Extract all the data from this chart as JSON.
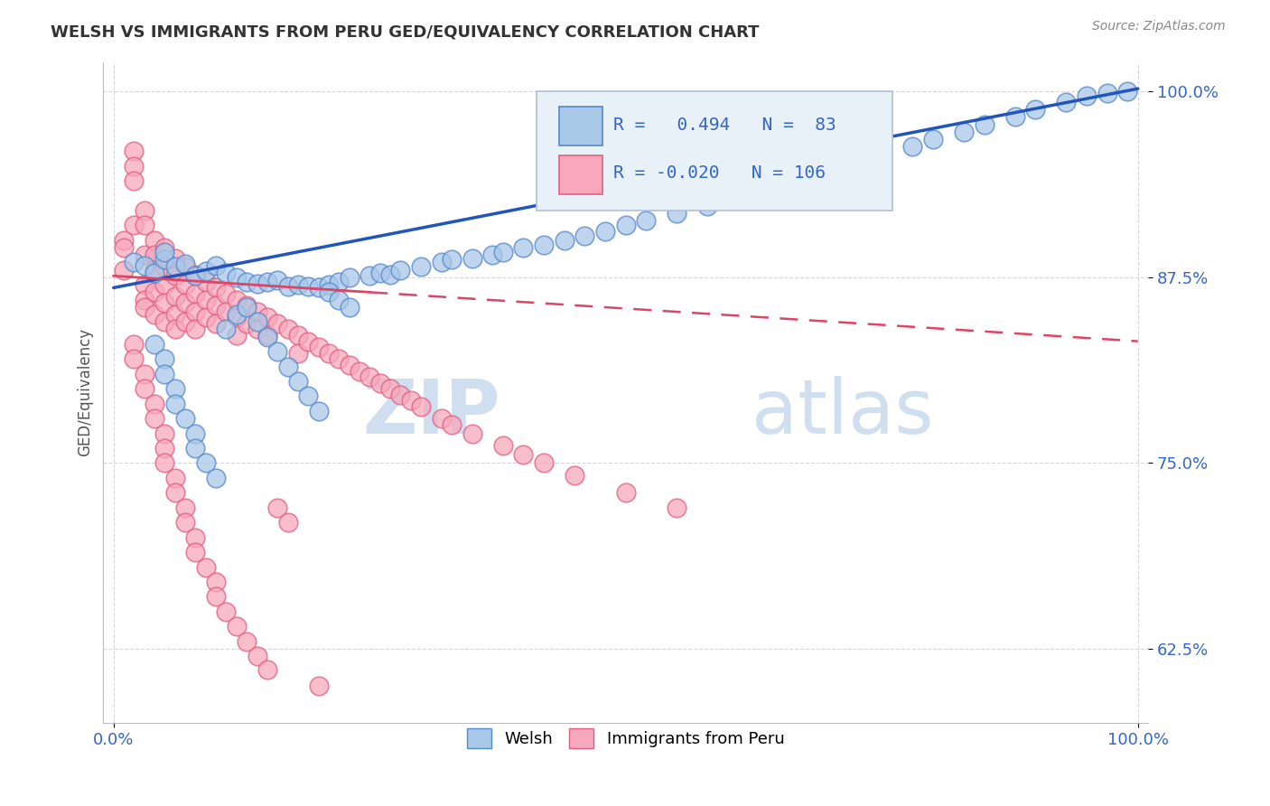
{
  "title": "WELSH VS IMMIGRANTS FROM PERU GED/EQUIVALENCY CORRELATION CHART",
  "source": "Source: ZipAtlas.com",
  "ylabel": "GED/Equivalency",
  "xlim": [
    -0.01,
    1.01
  ],
  "ylim": [
    0.575,
    1.02
  ],
  "yticks": [
    0.625,
    0.75,
    0.875,
    1.0
  ],
  "ytick_labels": [
    "62.5%",
    "75.0%",
    "87.5%",
    "100.0%"
  ],
  "xtick_labels": [
    "0.0%",
    "100.0%"
  ],
  "welsh_face": "#a8c8e8",
  "welsh_edge": "#5588cc",
  "peru_face": "#f8a8bc",
  "peru_edge": "#e06080",
  "trend_blue": "#2255bb",
  "trend_pink": "#dd4466",
  "tick_color": "#3366cc",
  "watermark_color": "#d0dff0",
  "legend_bg": "#e8f0f8",
  "legend_edge": "#b0c0d8",
  "R_welsh": 0.494,
  "N_welsh": 83,
  "R_peru": -0.02,
  "N_peru": 106,
  "welsh_trend_x0": 0.0,
  "welsh_trend_y0": 0.868,
  "welsh_trend_x1": 1.0,
  "welsh_trend_y1": 1.002,
  "peru_trend_x0": 0.0,
  "peru_trend_y0": 0.876,
  "peru_trend_x1": 1.0,
  "peru_trend_y1": 0.832,
  "welsh_x": [
    0.02,
    0.03,
    0.04,
    0.05,
    0.05,
    0.06,
    0.07,
    0.08,
    0.09,
    0.1,
    0.11,
    0.12,
    0.13,
    0.14,
    0.15,
    0.16,
    0.17,
    0.18,
    0.19,
    0.2,
    0.21,
    0.22,
    0.23,
    0.25,
    0.26,
    0.27,
    0.28,
    0.3,
    0.32,
    0.33,
    0.35,
    0.37,
    0.38,
    0.4,
    0.42,
    0.44,
    0.46,
    0.48,
    0.5,
    0.52,
    0.55,
    0.58,
    0.6,
    0.63,
    0.65,
    0.68,
    0.7,
    0.73,
    0.75,
    0.78,
    0.8,
    0.83,
    0.85,
    0.88,
    0.9,
    0.93,
    0.95,
    0.97,
    0.99,
    0.04,
    0.05,
    0.05,
    0.06,
    0.06,
    0.07,
    0.08,
    0.08,
    0.09,
    0.1,
    0.11,
    0.12,
    0.13,
    0.14,
    0.15,
    0.16,
    0.17,
    0.18,
    0.19,
    0.2,
    0.21,
    0.22,
    0.23
  ],
  "welsh_y": [
    0.885,
    0.883,
    0.878,
    0.887,
    0.892,
    0.882,
    0.884,
    0.876,
    0.879,
    0.883,
    0.878,
    0.875,
    0.872,
    0.871,
    0.872,
    0.873,
    0.869,
    0.87,
    0.869,
    0.868,
    0.87,
    0.872,
    0.875,
    0.876,
    0.878,
    0.877,
    0.88,
    0.882,
    0.885,
    0.887,
    0.888,
    0.89,
    0.892,
    0.895,
    0.897,
    0.9,
    0.903,
    0.906,
    0.91,
    0.913,
    0.918,
    0.923,
    0.928,
    0.933,
    0.938,
    0.943,
    0.948,
    0.953,
    0.958,
    0.963,
    0.968,
    0.973,
    0.978,
    0.983,
    0.988,
    0.993,
    0.997,
    0.999,
    1.0,
    0.83,
    0.82,
    0.81,
    0.8,
    0.79,
    0.78,
    0.77,
    0.76,
    0.75,
    0.74,
    0.84,
    0.85,
    0.855,
    0.845,
    0.835,
    0.825,
    0.815,
    0.805,
    0.795,
    0.785,
    0.865,
    0.86,
    0.855
  ],
  "peru_x": [
    0.01,
    0.01,
    0.01,
    0.02,
    0.02,
    0.02,
    0.02,
    0.03,
    0.03,
    0.03,
    0.03,
    0.03,
    0.03,
    0.04,
    0.04,
    0.04,
    0.04,
    0.04,
    0.05,
    0.05,
    0.05,
    0.05,
    0.05,
    0.06,
    0.06,
    0.06,
    0.06,
    0.06,
    0.07,
    0.07,
    0.07,
    0.07,
    0.08,
    0.08,
    0.08,
    0.08,
    0.09,
    0.09,
    0.09,
    0.1,
    0.1,
    0.1,
    0.11,
    0.11,
    0.12,
    0.12,
    0.12,
    0.13,
    0.13,
    0.14,
    0.14,
    0.15,
    0.15,
    0.16,
    0.17,
    0.18,
    0.18,
    0.19,
    0.2,
    0.21,
    0.22,
    0.23,
    0.24,
    0.25,
    0.26,
    0.27,
    0.28,
    0.29,
    0.3,
    0.32,
    0.33,
    0.35,
    0.38,
    0.4,
    0.42,
    0.45,
    0.5,
    0.55,
    0.02,
    0.02,
    0.03,
    0.03,
    0.04,
    0.04,
    0.05,
    0.05,
    0.05,
    0.06,
    0.06,
    0.07,
    0.07,
    0.08,
    0.08,
    0.09,
    0.1,
    0.1,
    0.11,
    0.12,
    0.13,
    0.14,
    0.15,
    0.16,
    0.17,
    0.2
  ],
  "peru_y": [
    0.9,
    0.895,
    0.88,
    0.96,
    0.95,
    0.94,
    0.91,
    0.92,
    0.91,
    0.89,
    0.87,
    0.86,
    0.855,
    0.9,
    0.89,
    0.88,
    0.865,
    0.85,
    0.895,
    0.882,
    0.87,
    0.858,
    0.845,
    0.888,
    0.876,
    0.862,
    0.85,
    0.84,
    0.882,
    0.87,
    0.858,
    0.845,
    0.877,
    0.864,
    0.852,
    0.84,
    0.872,
    0.86,
    0.848,
    0.868,
    0.856,
    0.844,
    0.864,
    0.852,
    0.86,
    0.848,
    0.836,
    0.856,
    0.844,
    0.852,
    0.84,
    0.848,
    0.836,
    0.844,
    0.84,
    0.836,
    0.824,
    0.832,
    0.828,
    0.824,
    0.82,
    0.816,
    0.812,
    0.808,
    0.804,
    0.8,
    0.796,
    0.792,
    0.788,
    0.78,
    0.776,
    0.77,
    0.762,
    0.756,
    0.75,
    0.742,
    0.73,
    0.72,
    0.83,
    0.82,
    0.81,
    0.8,
    0.79,
    0.78,
    0.77,
    0.76,
    0.75,
    0.74,
    0.73,
    0.72,
    0.71,
    0.7,
    0.69,
    0.68,
    0.67,
    0.66,
    0.65,
    0.64,
    0.63,
    0.62,
    0.611,
    0.72,
    0.71,
    0.6
  ]
}
